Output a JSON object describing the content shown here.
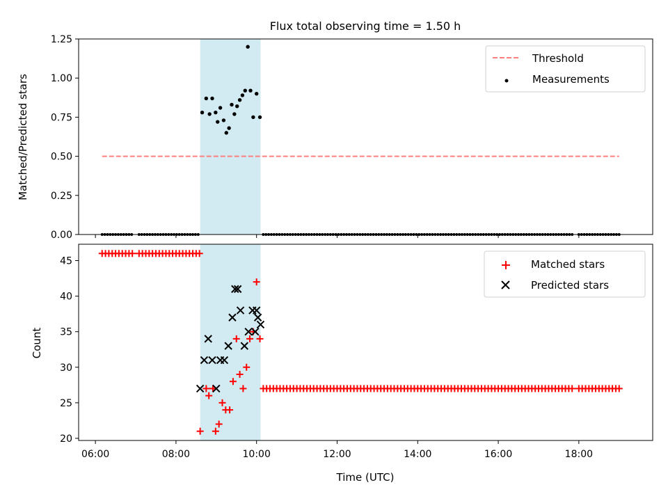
{
  "chart_data": [
    {
      "type": "scatter",
      "title": "Flux total observing time = 1.50 h",
      "xlabel": "",
      "ylabel": "Matched/Predicted stars",
      "xlim": [
        "05:35",
        "19:50"
      ],
      "ylim": [
        0,
        1.25
      ],
      "yticks": [
        "0.00",
        "0.25",
        "0.50",
        "0.75",
        "1.00",
        "1.25"
      ],
      "shaded_region": {
        "x": [
          "08:36",
          "10:06"
        ],
        "color": "#add8e6"
      },
      "legend_position": "upper right",
      "series": [
        {
          "name": "Threshold",
          "kind": "dashed-line",
          "color": "#ff7f7f",
          "x": [
            "06:10",
            "19:00"
          ],
          "y": [
            0.5,
            0.5
          ]
        },
        {
          "name": "Measurements",
          "kind": "dots",
          "color": "#000000",
          "x": [
            "08:39",
            "08:45",
            "08:50",
            "08:54",
            "08:59",
            "09:02",
            "09:06",
            "09:11",
            "09:15",
            "09:19",
            "09:23",
            "09:27",
            "09:31",
            "09:35",
            "09:39",
            "09:43",
            "09:47",
            "09:51",
            "09:55",
            "10:00",
            "10:05"
          ],
          "y": [
            0.78,
            0.87,
            0.77,
            0.87,
            0.78,
            0.72,
            0.81,
            0.73,
            0.65,
            0.68,
            0.83,
            0.77,
            0.82,
            0.86,
            0.89,
            0.92,
            1.2,
            0.92,
            0.75,
            0.9,
            0.75
          ]
        },
        {
          "name": "",
          "kind": "zero-dots",
          "color": "#000000",
          "segments": [
            [
              "06:10",
              "06:55"
            ],
            [
              "07:05",
              "08:35"
            ],
            [
              "10:10",
              "17:50"
            ],
            [
              "18:00",
              "19:00"
            ]
          ],
          "y": 0
        }
      ]
    },
    {
      "type": "scatter",
      "title": "",
      "xlabel": "Time (UTC)",
      "ylabel": "Count",
      "xlim": [
        "05:35",
        "19:50"
      ],
      "ylim": [
        19.7,
        47.3
      ],
      "yticks": [
        "20",
        "25",
        "30",
        "35",
        "40",
        "45"
      ],
      "xticks": [
        "06:00",
        "08:00",
        "10:00",
        "12:00",
        "14:00",
        "16:00",
        "18:00"
      ],
      "shaded_region": {
        "x": [
          "08:36",
          "10:06"
        ],
        "color": "#add8e6"
      },
      "legend_position": "upper right",
      "series": [
        {
          "name": "Matched stars",
          "kind": "plus",
          "color": "#ff0000",
          "x": [
            "08:36",
            "08:45",
            "08:49",
            "08:55",
            "08:59",
            "09:04",
            "09:09",
            "09:14",
            "09:20",
            "09:25",
            "09:30",
            "09:35",
            "09:40",
            "09:45",
            "09:50",
            "09:55",
            "10:00",
            "10:05"
          ],
          "y": [
            21,
            27,
            26,
            27,
            21,
            22,
            25,
            24,
            24,
            28,
            34,
            29,
            27,
            30,
            34,
            35,
            42,
            34
          ],
          "baseline_segments": [
            {
              "x": [
                "06:10",
                "06:55"
              ],
              "y": 46
            },
            {
              "x": [
                "07:05",
                "08:35"
              ],
              "y": 46
            },
            {
              "x": [
                "10:10",
                "17:50"
              ],
              "y": 27
            },
            {
              "x": [
                "18:00",
                "19:00"
              ],
              "y": 27
            }
          ]
        },
        {
          "name": "Predicted stars",
          "kind": "x",
          "color": "#000000",
          "x": [
            "08:36",
            "08:42",
            "08:48",
            "08:54",
            "09:00",
            "09:06",
            "09:12",
            "09:18",
            "09:24",
            "09:28",
            "09:32",
            "09:36",
            "09:42",
            "09:48",
            "09:54",
            "10:00",
            "10:06",
            "10:02",
            "09:58"
          ],
          "y": [
            27,
            31,
            34,
            31,
            27,
            31,
            31,
            33,
            37,
            41,
            41,
            38,
            33,
            35,
            38,
            38,
            36,
            37,
            35
          ]
        }
      ]
    }
  ]
}
